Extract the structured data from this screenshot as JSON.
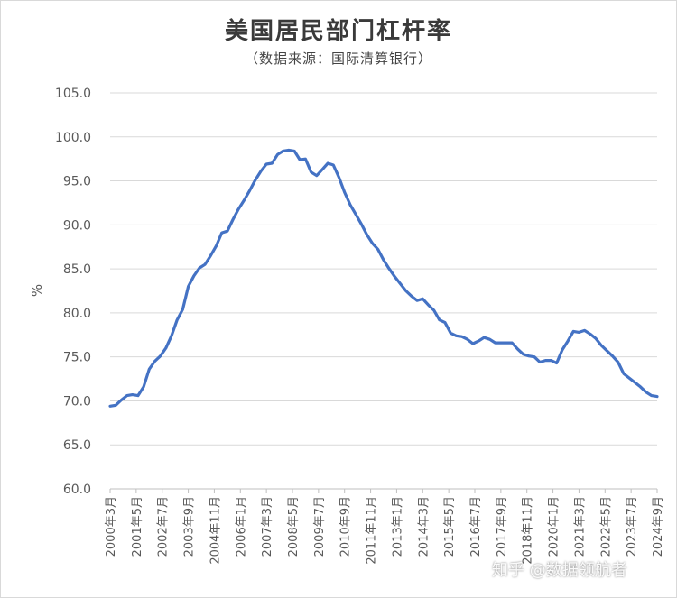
{
  "chart_data": {
    "type": "line",
    "title": "美国居民部门杠杆率",
    "subtitle": "（数据来源：国际清算银行）",
    "xlabel": "",
    "ylabel": "%",
    "ylim": [
      60,
      105
    ],
    "yticks": [
      "60.0",
      "65.0",
      "70.0",
      "75.0",
      "80.0",
      "85.0",
      "90.0",
      "95.0",
      "100.0",
      "105.0"
    ],
    "xticks": [
      "2000年3月",
      "2001年5月",
      "2002年7月",
      "2003年9月",
      "2004年11月",
      "2006年1月",
      "2007年3月",
      "2008年5月",
      "2009年7月",
      "2010年9月",
      "2011年11月",
      "2013年1月",
      "2014年3月",
      "2015年5月",
      "2016年7月",
      "2017年9月",
      "2018年11月",
      "2020年1月",
      "2021年3月",
      "2022年5月",
      "2023年7月",
      "2024年9月"
    ],
    "grid": true,
    "legend": "none",
    "color": "#4472C4",
    "series": [
      {
        "values": [
          69.4,
          69.5,
          70.1,
          70.6,
          70.7,
          70.6,
          71.6,
          73.6,
          74.5,
          75.1,
          76.0,
          77.4,
          79.2,
          80.4,
          83.0,
          84.2,
          85.1,
          85.5,
          86.5,
          87.6,
          89.1,
          89.3,
          90.6,
          91.8,
          92.8,
          93.9,
          95.1,
          96.1,
          96.9,
          97.0,
          98.0,
          98.4,
          98.5,
          98.4,
          97.4,
          97.5,
          96.0,
          95.6,
          96.3,
          97.0,
          96.8,
          95.4,
          93.7,
          92.3,
          91.2,
          90.1,
          88.9,
          87.9,
          87.2,
          86.0,
          85.0,
          84.1,
          83.3,
          82.5,
          81.9,
          81.4,
          81.6,
          80.9,
          80.3,
          79.2,
          78.9,
          77.7,
          77.4,
          77.3,
          77.0,
          76.5,
          76.8,
          77.2,
          77.0,
          76.6,
          76.6,
          76.6,
          76.6,
          75.9,
          75.3,
          75.1,
          75.0,
          74.4,
          74.6,
          74.6,
          74.3,
          75.8,
          76.8,
          77.9,
          77.8,
          78.0,
          77.6,
          77.1,
          76.3,
          75.7,
          75.1,
          74.4,
          73.1,
          72.6,
          72.1,
          71.6,
          71.0,
          70.6,
          70.5
        ]
      }
    ]
  },
  "watermark": "知乎 @数据领航者"
}
